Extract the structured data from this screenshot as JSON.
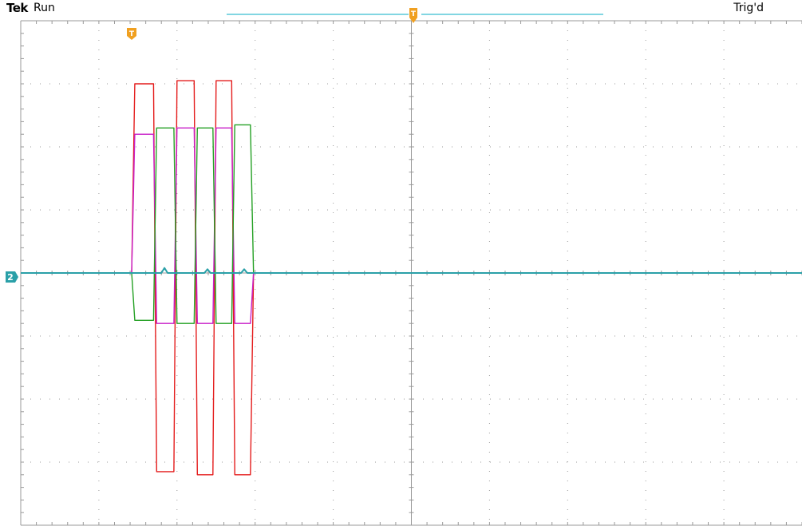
{
  "header": {
    "brand": "Tek",
    "status": "Run",
    "trigger_status": "Trig'd"
  },
  "markers": {
    "ch2_label": "2",
    "trigger_glyph": "T"
  },
  "colors": {
    "grid": "#9a9a9a",
    "ch1": "#e41c1c",
    "ch2": "#2aa0a8",
    "ch3": "#c81ec8",
    "ch4": "#24a024",
    "marker": "#f0a020",
    "record_bar": "#58c8d8"
  },
  "chart_data": {
    "type": "line",
    "title": "",
    "xlabel": "",
    "ylabel": "",
    "grid": true,
    "xlim": [
      0,
      10
    ],
    "ylim": [
      -4,
      4
    ],
    "series": [
      {
        "color": "#e41c1c",
        "x": [
          0,
          1.42,
          1.46,
          1.7,
          1.74,
          1.96,
          2.0,
          2.22,
          2.26,
          2.46,
          2.5,
          2.7,
          2.74,
          2.94,
          2.98,
          10
        ],
        "y": [
          0,
          0,
          3.0,
          3.0,
          -3.15,
          -3.15,
          3.05,
          3.05,
          -3.2,
          -3.2,
          3.05,
          3.05,
          -3.2,
          -3.2,
          0,
          0
        ]
      },
      {
        "color": "#c81ec8",
        "x": [
          0,
          1.42,
          1.46,
          1.7,
          1.74,
          1.96,
          2.0,
          2.22,
          2.26,
          2.46,
          2.5,
          2.7,
          2.74,
          2.94,
          2.98,
          10
        ],
        "y": [
          0,
          0,
          2.2,
          2.2,
          -0.8,
          -0.8,
          2.3,
          2.3,
          -0.8,
          -0.8,
          2.3,
          2.3,
          -0.8,
          -0.8,
          0,
          0
        ]
      },
      {
        "color": "#24a024",
        "x": [
          0,
          1.42,
          1.46,
          1.7,
          1.74,
          1.96,
          2.0,
          2.22,
          2.26,
          2.46,
          2.5,
          2.7,
          2.74,
          2.94,
          2.98,
          10
        ],
        "y": [
          0,
          0,
          -0.75,
          -0.75,
          2.3,
          2.3,
          -0.8,
          -0.8,
          2.3,
          2.3,
          -0.8,
          -0.8,
          2.35,
          2.35,
          0,
          0
        ]
      },
      {
        "color": "#2aa0a8",
        "x": [
          0,
          1.8,
          1.84,
          1.88,
          2.35,
          2.39,
          2.43,
          2.82,
          2.86,
          2.9,
          10
        ],
        "y": [
          0,
          0,
          0.08,
          0,
          0,
          0.06,
          0,
          0,
          0.06,
          0,
          0
        ]
      }
    ]
  }
}
